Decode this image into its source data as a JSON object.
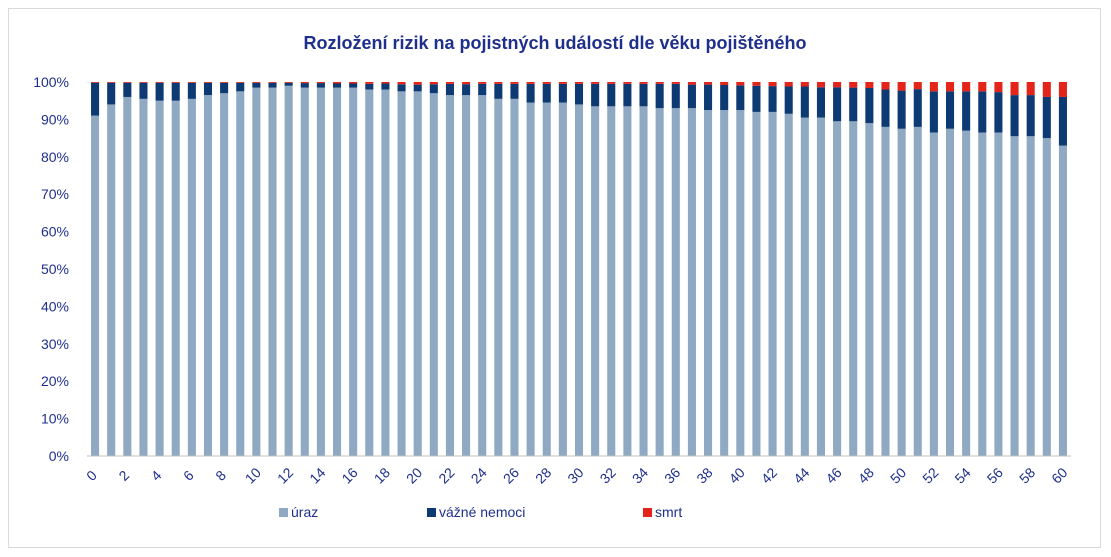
{
  "chart_data": {
    "type": "bar",
    "stacked": true,
    "title": "Rozložení rizik na pojistných událostí dle věku pojištěného",
    "xlabel": "",
    "ylabel": "",
    "ylim": [
      0,
      1
    ],
    "yticks": [
      0,
      0.1,
      0.2,
      0.3,
      0.4,
      0.5,
      0.6,
      0.7,
      0.8,
      0.9,
      1.0
    ],
    "ytick_labels": [
      "0%",
      "10%",
      "20%",
      "30%",
      "40%",
      "50%",
      "60%",
      "70%",
      "80%",
      "90%",
      "100%"
    ],
    "categories": [
      0,
      1,
      2,
      3,
      4,
      5,
      6,
      7,
      8,
      9,
      10,
      11,
      12,
      13,
      14,
      15,
      16,
      17,
      18,
      19,
      20,
      21,
      22,
      23,
      24,
      25,
      26,
      27,
      28,
      29,
      30,
      31,
      32,
      33,
      34,
      35,
      36,
      37,
      38,
      39,
      40,
      41,
      42,
      43,
      44,
      45,
      46,
      47,
      48,
      49,
      50,
      51,
      52,
      53,
      54,
      55,
      56,
      57,
      58,
      59,
      60
    ],
    "xtick_labels": [
      "0",
      "2",
      "4",
      "6",
      "8",
      "10",
      "12",
      "14",
      "16",
      "18",
      "20",
      "22",
      "24",
      "26",
      "28",
      "30",
      "32",
      "34",
      "36",
      "38",
      "40",
      "42",
      "44",
      "46",
      "48",
      "50",
      "52",
      "54",
      "56",
      "58",
      "60"
    ],
    "xtick_categories": [
      0,
      2,
      4,
      6,
      8,
      10,
      12,
      14,
      16,
      18,
      20,
      22,
      24,
      26,
      28,
      30,
      32,
      34,
      36,
      38,
      40,
      42,
      44,
      46,
      48,
      50,
      52,
      54,
      56,
      58,
      60
    ],
    "grid": false,
    "legend_position": "bottom",
    "series": [
      {
        "name": "úraz",
        "color": "#8ea9c1",
        "values": [
          0.91,
          0.94,
          0.96,
          0.955,
          0.95,
          0.95,
          0.955,
          0.965,
          0.97,
          0.975,
          0.985,
          0.985,
          0.99,
          0.985,
          0.985,
          0.985,
          0.985,
          0.98,
          0.98,
          0.975,
          0.975,
          0.97,
          0.965,
          0.965,
          0.965,
          0.955,
          0.955,
          0.945,
          0.945,
          0.945,
          0.94,
          0.935,
          0.935,
          0.935,
          0.935,
          0.93,
          0.93,
          0.93,
          0.925,
          0.925,
          0.925,
          0.92,
          0.92,
          0.915,
          0.905,
          0.905,
          0.895,
          0.895,
          0.89,
          0.88,
          0.875,
          0.88,
          0.865,
          0.875,
          0.87,
          0.865,
          0.865,
          0.855,
          0.855,
          0.85,
          0.83
        ]
      },
      {
        "name": "vážné nemoci",
        "color": "#0e3a73",
        "values": [
          0.088,
          0.058,
          0.038,
          0.043,
          0.048,
          0.048,
          0.043,
          0.033,
          0.028,
          0.023,
          0.013,
          0.013,
          0.008,
          0.012,
          0.012,
          0.011,
          0.011,
          0.015,
          0.016,
          0.019,
          0.018,
          0.024,
          0.03,
          0.029,
          0.03,
          0.04,
          0.04,
          0.05,
          0.05,
          0.05,
          0.055,
          0.06,
          0.06,
          0.06,
          0.06,
          0.065,
          0.065,
          0.063,
          0.068,
          0.067,
          0.066,
          0.07,
          0.069,
          0.073,
          0.083,
          0.081,
          0.091,
          0.09,
          0.094,
          0.1,
          0.102,
          0.101,
          0.11,
          0.1,
          0.105,
          0.11,
          0.108,
          0.11,
          0.11,
          0.11,
          0.13
        ]
      },
      {
        "name": "smrt",
        "color": "#e3241b",
        "values": [
          0.002,
          0.002,
          0.002,
          0.002,
          0.002,
          0.002,
          0.002,
          0.002,
          0.002,
          0.002,
          0.002,
          0.002,
          0.002,
          0.003,
          0.003,
          0.004,
          0.004,
          0.005,
          0.004,
          0.006,
          0.007,
          0.006,
          0.005,
          0.006,
          0.005,
          0.005,
          0.005,
          0.005,
          0.005,
          0.005,
          0.005,
          0.005,
          0.005,
          0.005,
          0.005,
          0.005,
          0.005,
          0.007,
          0.007,
          0.008,
          0.009,
          0.01,
          0.011,
          0.012,
          0.012,
          0.014,
          0.014,
          0.015,
          0.016,
          0.02,
          0.023,
          0.019,
          0.025,
          0.025,
          0.025,
          0.025,
          0.027,
          0.035,
          0.035,
          0.04,
          0.04
        ]
      }
    ]
  }
}
